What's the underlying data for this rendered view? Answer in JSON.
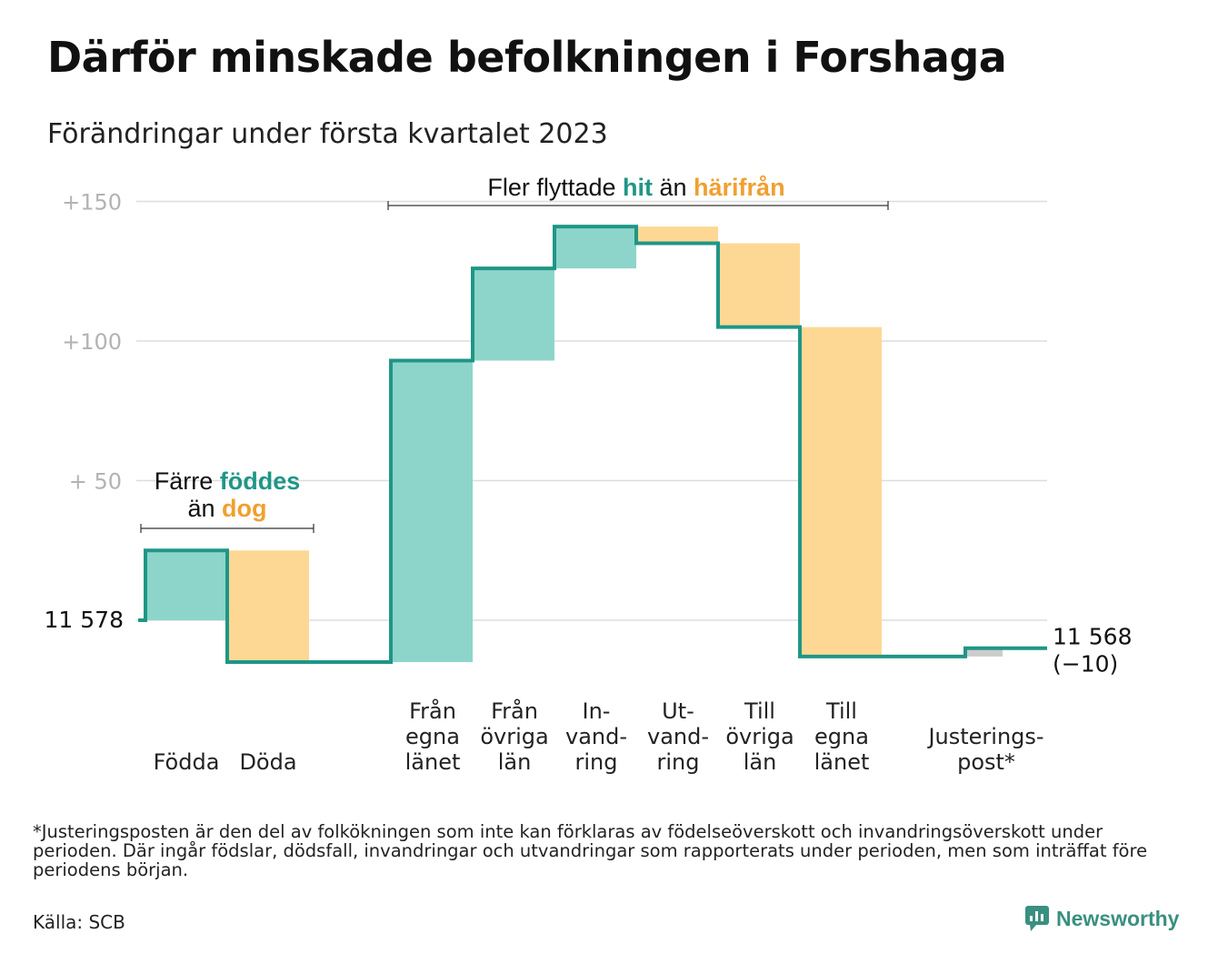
{
  "title": "Därför minskade befolkningen i Forshaga",
  "subtitle": "Förändringar under första kvartalet 2023",
  "footnote": "*Justeringsposten är den del av folkökningen som inte kan förklaras av födelseöverskott och invandringsöverskott under perioden. Där ingår födslar, dödsfall, invandringar och utvandringar som rapporterats under perioden, men som inträffat före periodens början.",
  "source": "Källa: SCB",
  "logo": {
    "text": "Newsworthy",
    "icon": "newsworthy-logo-icon"
  },
  "colors": {
    "increase": "#8dd5ca",
    "decrease": "#fdd894",
    "adjustment": "#cccccc",
    "line": "#1f9686",
    "accent_teal": "#1f9686",
    "accent_orange": "#f0a030",
    "grid": "#dddddd",
    "tick_text": "#b3b3b3"
  },
  "chart_data": {
    "type": "waterfall",
    "baseline": 11578,
    "start_label": "11 578",
    "end_label": "11 568",
    "end_change_label": "(−10)",
    "ylim": [
      -15,
      155
    ],
    "yticks": [
      {
        "value": 150,
        "label": "+150"
      },
      {
        "value": 100,
        "label": "+100"
      },
      {
        "value": 50,
        "label": "+ 50"
      }
    ],
    "grid": true,
    "steps": [
      {
        "label": [
          "Födda"
        ],
        "value": 25,
        "kind": "increase"
      },
      {
        "label": [
          "Döda"
        ],
        "value": -40,
        "kind": "decrease"
      },
      {
        "label": [
          "Från",
          "egna",
          "länet"
        ],
        "value": 108,
        "kind": "increase"
      },
      {
        "label": [
          "Från",
          "övriga",
          "län"
        ],
        "value": 33,
        "kind": "increase"
      },
      {
        "label": [
          "In-",
          "vand-",
          "ring"
        ],
        "value": 15,
        "kind": "increase"
      },
      {
        "label": [
          "Ut-",
          "vand-",
          "ring"
        ],
        "value": -6,
        "kind": "decrease"
      },
      {
        "label": [
          "Till",
          "övriga",
          "län"
        ],
        "value": -30,
        "kind": "decrease"
      },
      {
        "label": [
          "Till",
          "egna",
          "länet"
        ],
        "value": -118,
        "kind": "decrease"
      },
      {
        "label": [
          "Justerings-",
          "post*"
        ],
        "value": 3,
        "kind": "adjustment"
      }
    ],
    "annotations": [
      {
        "id": "births-deaths",
        "lines": [
          [
            {
              "text": "Färre ",
              "color": "#111111"
            },
            {
              "text": "föddes",
              "color": "#1f9686"
            }
          ],
          [
            {
              "text": "än ",
              "color": "#111111"
            },
            {
              "text": "dog",
              "color": "#f0a030"
            }
          ]
        ]
      },
      {
        "id": "migration",
        "lines": [
          [
            {
              "text": "Fler flyttade ",
              "color": "#111111"
            },
            {
              "text": "hit",
              "color": "#1f9686"
            },
            {
              "text": " än ",
              "color": "#111111"
            },
            {
              "text": "härifrån",
              "color": "#f0a030"
            }
          ]
        ]
      }
    ]
  }
}
